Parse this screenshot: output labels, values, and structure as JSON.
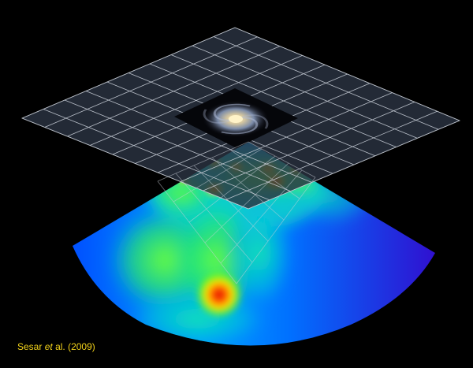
{
  "credit": {
    "author": "Sesar",
    "etal": "et",
    "rest": "al. (2009)"
  },
  "colors": {
    "background": "#000000",
    "grid_fill": "#2b3342",
    "grid_line": "#c9cfd8",
    "credit_text": "#f2d21a"
  }
}
